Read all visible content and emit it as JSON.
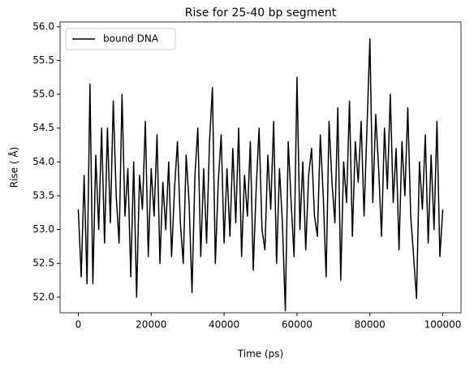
{
  "chart_data": {
    "type": "line",
    "title": "Rise for 25-40 bp segment",
    "x_label": "Time (ps)",
    "y_label": "Rise ( Å)",
    "x": [
      0,
      800,
      1600,
      2400,
      3200,
      4000,
      4800,
      5600,
      6400,
      7200,
      8000,
      8800,
      9600,
      10400,
      11200,
      12000,
      12800,
      13600,
      14400,
      15200,
      16000,
      16800,
      17600,
      18400,
      19200,
      20000,
      20800,
      21600,
      22400,
      23200,
      24000,
      24800,
      25600,
      26400,
      27200,
      28000,
      28800,
      29600,
      30400,
      31200,
      32000,
      32800,
      33600,
      34400,
      35200,
      36000,
      36800,
      37600,
      38400,
      39200,
      40000,
      40800,
      41600,
      42400,
      43200,
      44000,
      44800,
      45600,
      46400,
      47200,
      48000,
      48800,
      49600,
      50400,
      51200,
      52000,
      52800,
      53600,
      54400,
      55200,
      56000,
      56800,
      57600,
      58400,
      59200,
      60000,
      60800,
      61600,
      62400,
      63200,
      64000,
      64800,
      65600,
      66400,
      67200,
      68000,
      68800,
      69600,
      70400,
      71200,
      72000,
      72800,
      73600,
      74400,
      75200,
      76000,
      76800,
      77600,
      78400,
      79200,
      80000,
      80800,
      81600,
      82400,
      83200,
      84000,
      84800,
      85600,
      86400,
      87200,
      88000,
      88800,
      89600,
      90400,
      91200,
      92000,
      92800,
      93600,
      94400,
      95200,
      96000,
      96800,
      97600,
      98400,
      99200,
      100000
    ],
    "series": [
      {
        "name": "bound DNA",
        "color": "#000000",
        "values": [
          53.3,
          52.3,
          53.8,
          52.2,
          55.15,
          52.2,
          54.1,
          53.0,
          54.5,
          52.8,
          54.5,
          53.1,
          54.9,
          53.5,
          52.8,
          55.0,
          53.2,
          53.9,
          52.3,
          54.0,
          52.0,
          53.8,
          53.3,
          54.6,
          52.6,
          53.9,
          53.2,
          54.4,
          52.5,
          53.7,
          53.0,
          54.0,
          52.6,
          53.6,
          54.3,
          53.1,
          52.5,
          54.1,
          53.4,
          52.07,
          53.8,
          54.5,
          52.6,
          53.9,
          52.8,
          54.3,
          55.1,
          52.5,
          53.7,
          54.4,
          52.8,
          53.9,
          52.9,
          54.2,
          53.1,
          54.5,
          52.6,
          53.8,
          53.2,
          54.3,
          52.4,
          53.6,
          54.5,
          53.0,
          52.7,
          54.1,
          53.3,
          54.6,
          52.5,
          53.9,
          53.1,
          51.8,
          54.3,
          53.4,
          52.6,
          55.25,
          53.0,
          54.0,
          52.7,
          53.8,
          54.2,
          53.2,
          52.9,
          54.4,
          53.5,
          52.3,
          54.6,
          53.7,
          53.1,
          54.8,
          52.25,
          54.0,
          53.4,
          54.9,
          52.9,
          54.3,
          53.7,
          54.6,
          53.2,
          54.5,
          55.82,
          53.4,
          54.7,
          53.9,
          52.9,
          54.5,
          53.6,
          55.0,
          53.4,
          54.2,
          52.7,
          54.3,
          53.5,
          54.8,
          53.2,
          52.6,
          51.98,
          54.0,
          53.3,
          54.4,
          52.8,
          54.1,
          53.0,
          54.6,
          52.6,
          53.3
        ]
      }
    ],
    "xlim": [
      -5000,
      105000
    ],
    "xticks": [
      0,
      20000,
      40000,
      60000,
      80000,
      100000
    ],
    "ylim": [
      51.77,
      56.07
    ],
    "yticks": [
      {
        "value": 52.0,
        "label": "52.0"
      },
      52.5,
      {
        "value": 53.0,
        "label": "53.0"
      },
      53.5,
      {
        "value": 54.0,
        "label": "54.0"
      },
      54.5,
      {
        "value": 55.0,
        "label": "55.0"
      },
      55.5,
      {
        "value": 56.0,
        "label": "56.0"
      }
    ],
    "legend": "upper left",
    "grid": false
  }
}
